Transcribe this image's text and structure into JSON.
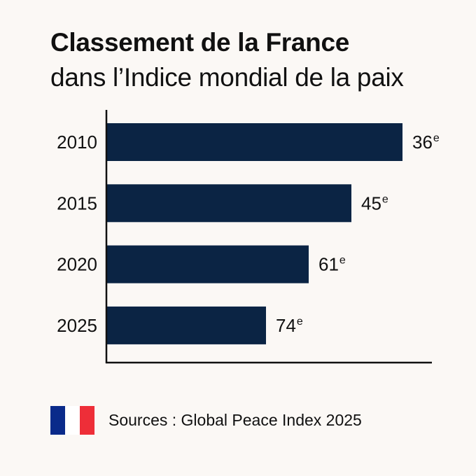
{
  "title": {
    "line1": "Classement de la France",
    "line2": "dans l’Indice mondial de la paix"
  },
  "footer": {
    "flag_icon": "france-flag-icon",
    "flag_colors": [
      "#0a2a8a",
      "#ffffff",
      "#ee2e38"
    ],
    "source": "Sources : Global Peace Index 2025"
  },
  "colors": {
    "bar": "#0b2444",
    "axis": "#111111",
    "background": "#fbf8f5"
  },
  "chart_data": {
    "type": "bar",
    "orientation": "horizontal",
    "title": "Classement de la France dans l’Indice mondial de la paix",
    "xlabel": "",
    "ylabel": "",
    "categories": [
      "2010",
      "2015",
      "2020",
      "2025"
    ],
    "values": [
      36,
      45,
      61,
      74
    ],
    "value_labels": [
      "36",
      "45",
      "61",
      "74"
    ],
    "value_suffix": "e",
    "note": "Rank (lower is better); bar length shown inversely to rank",
    "grid": false,
    "legend": "none"
  }
}
